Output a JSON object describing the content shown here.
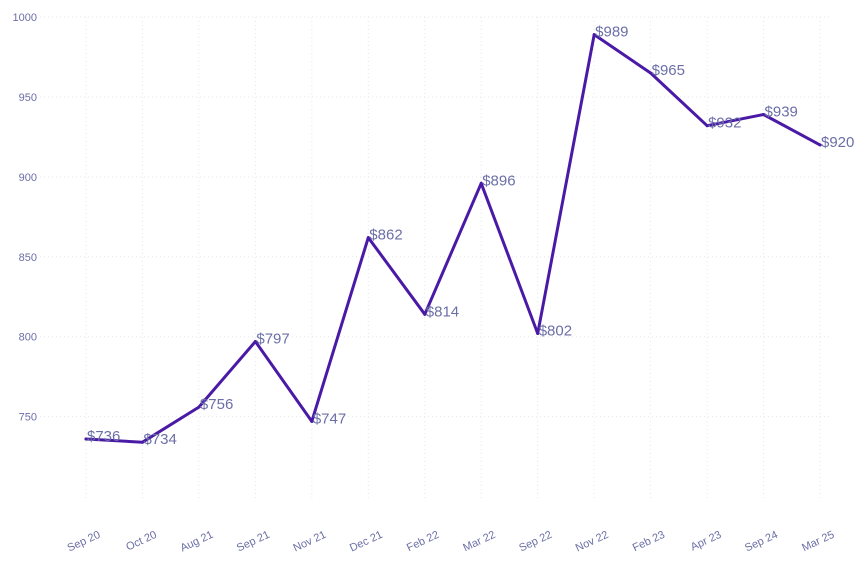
{
  "chart_data": {
    "type": "line",
    "categories": [
      "Sep 20",
      "Oct 20",
      "Aug 21",
      "Sep 21",
      "Nov 21",
      "Dec 21",
      "Feb 22",
      "Mar 22",
      "Sep 22",
      "Nov 22",
      "Feb 23",
      "Apr 23",
      "Sep 24",
      "Mar 25"
    ],
    "series": [
      {
        "values": [
          736,
          734,
          756,
          797,
          747,
          862,
          814,
          896,
          802,
          989,
          965,
          932,
          939,
          920
        ]
      }
    ],
    "data_labels": [
      "$736",
      "$734",
      "$756",
      "$797",
      "$747",
      "$862",
      "$814",
      "$896",
      "$802",
      "$989",
      "$965",
      "$932",
      "$939",
      "$920"
    ],
    "y_ticks": [
      "1000",
      "950",
      "900",
      "850",
      "800",
      "750"
    ],
    "ylim": [
      711,
      1000
    ],
    "grid": true,
    "legend": "none",
    "colors": {
      "line": "#4a1aa6",
      "text": "#6b6fa6"
    }
  }
}
